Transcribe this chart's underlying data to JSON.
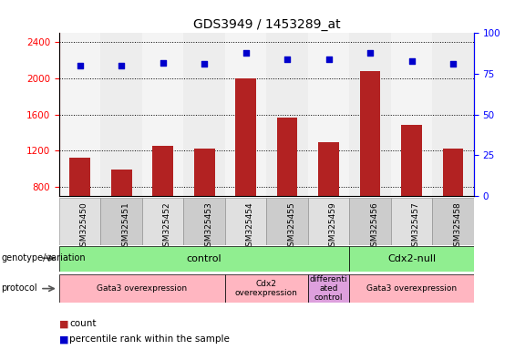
{
  "title": "GDS3949 / 1453289_at",
  "samples": [
    "GSM325450",
    "GSM325451",
    "GSM325452",
    "GSM325453",
    "GSM325454",
    "GSM325455",
    "GSM325459",
    "GSM325456",
    "GSM325457",
    "GSM325458"
  ],
  "counts": [
    1120,
    990,
    1250,
    1220,
    2000,
    1570,
    1300,
    2080,
    1490,
    1220
  ],
  "percentiles": [
    80,
    80,
    82,
    81,
    88,
    84,
    84,
    88,
    83,
    81
  ],
  "ylim_left": [
    700,
    2500
  ],
  "ylim_right": [
    0,
    100
  ],
  "yticks_left": [
    800,
    1200,
    1600,
    2000,
    2400
  ],
  "yticks_right": [
    0,
    25,
    50,
    75,
    100
  ],
  "bar_color": "#b22222",
  "dot_color": "#0000cc",
  "title_fontsize": 10,
  "col_bg_even": "#e0e0e0",
  "col_bg_odd": "#cccccc",
  "genotype_groups": [
    {
      "label": "control",
      "start": 0,
      "end": 7,
      "color": "#90EE90"
    },
    {
      "label": "Cdx2-null",
      "start": 7,
      "end": 10,
      "color": "#90EE90"
    }
  ],
  "protocol_groups": [
    {
      "label": "Gata3 overexpression",
      "start": 0,
      "end": 4,
      "color": "#FFB6C1"
    },
    {
      "label": "Cdx2\noverexpression",
      "start": 4,
      "end": 6,
      "color": "#FFB6C1"
    },
    {
      "label": "differenti\nated\ncontrol",
      "start": 6,
      "end": 7,
      "color": "#DDA0DD"
    },
    {
      "label": "Gata3 overexpression",
      "start": 7,
      "end": 10,
      "color": "#FFB6C1"
    }
  ]
}
